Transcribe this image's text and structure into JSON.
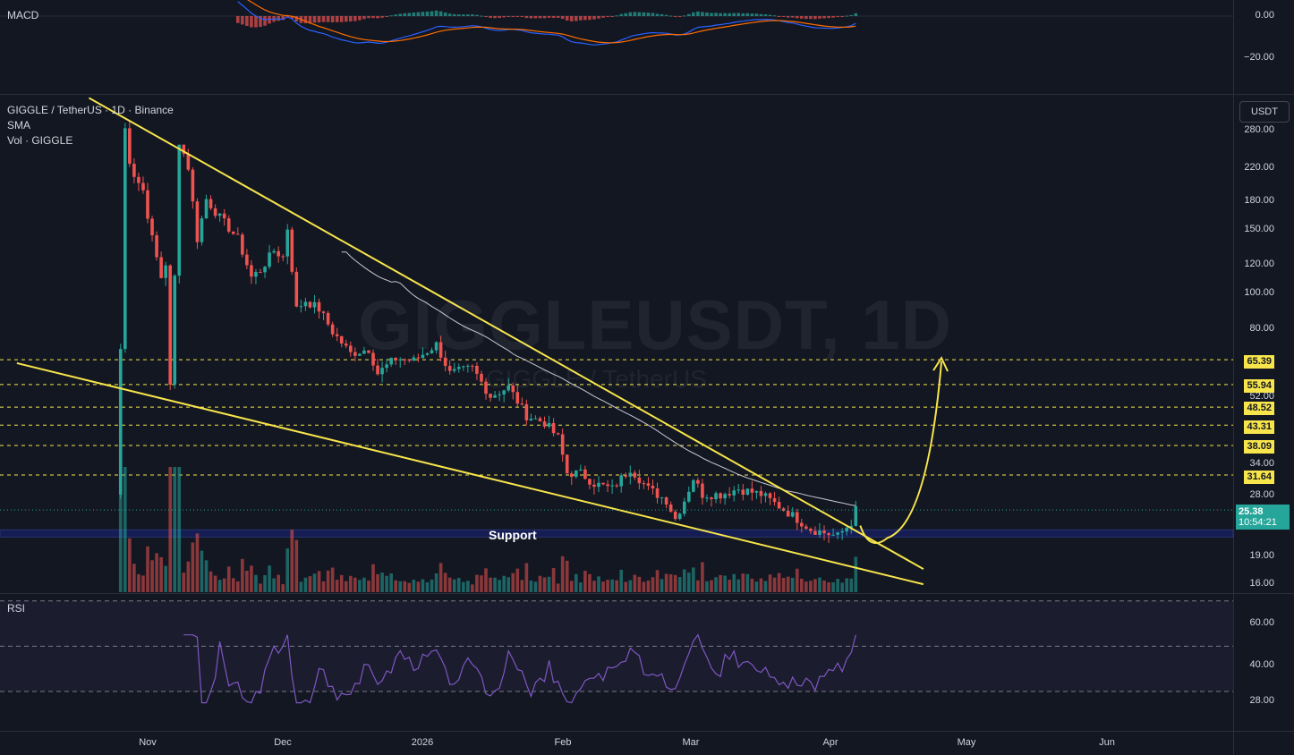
{
  "header": {
    "symbol_line": "GIGGLE / TetherUS · 1D · Binance",
    "sma_label": "SMA",
    "vol_label": "Vol · GIGGLE",
    "macd_label": "MACD",
    "rsi_label": "RSI",
    "currency": "USDT"
  },
  "watermark": {
    "line1": "GIGGLEUSDT, 1D",
    "line2": "GIGGLE / TetherUS"
  },
  "annotation": {
    "support_label": "Support"
  },
  "colors": {
    "background": "#131722",
    "up": "#26a69a",
    "down": "#ef5350",
    "trendline": "#f7e54b",
    "level_tag": "#f7e54b",
    "support_zone": "#1a237e",
    "sma": "#c8c8d0",
    "rsi": "#7e57c2",
    "macd": "#2962ff",
    "signal": "#ff6d00"
  },
  "price_axis": {
    "labels": [
      "280.00",
      "220.00",
      "180.00",
      "150.00",
      "120.00",
      "100.00",
      "80.00",
      "52.00",
      "34.00",
      "28.00",
      "19.00",
      "16.00"
    ],
    "level_tags": [
      "65.39",
      "55.94",
      "48.52",
      "43.31",
      "38.09",
      "31.64"
    ],
    "current_price": "25.38",
    "countdown": "10:54:21"
  },
  "macd_axis": {
    "labels": [
      "0.00",
      "−20.00"
    ]
  },
  "rsi_axis": {
    "labels": [
      "60.00",
      "40.00",
      "28.00"
    ]
  },
  "time_axis": {
    "labels": [
      "Nov",
      "Dec",
      "2026",
      "Feb",
      "Mar",
      "Apr",
      "May",
      "Jun"
    ]
  },
  "chart_data": {
    "type": "candlestick",
    "symbol": "GIGGLE / TetherUS",
    "interval": "1D",
    "exchange": "Binance",
    "scale": "log",
    "price_range": [
      15,
      300
    ],
    "anchors": [
      [
        "2025-10-26",
        70
      ],
      [
        "2025-10-27",
        280
      ],
      [
        "2025-10-28",
        230
      ],
      [
        "2025-10-29",
        210
      ],
      [
        "2025-10-31",
        190
      ],
      [
        "2025-11-02",
        140
      ],
      [
        "2025-11-04",
        110
      ],
      [
        "2025-11-05",
        120
      ],
      [
        "2025-11-06",
        55
      ],
      [
        "2025-11-07",
        110
      ],
      [
        "2025-11-08",
        260
      ],
      [
        "2025-11-10",
        220
      ],
      [
        "2025-11-12",
        140
      ],
      [
        "2025-11-14",
        180
      ],
      [
        "2025-11-17",
        160
      ],
      [
        "2025-11-19",
        150
      ],
      [
        "2025-11-21",
        140
      ],
      [
        "2025-11-24",
        110
      ],
      [
        "2025-11-26",
        115
      ],
      [
        "2025-11-29",
        130
      ],
      [
        "2025-12-01",
        125
      ],
      [
        "2025-12-02",
        150
      ],
      [
        "2025-12-04",
        90
      ],
      [
        "2025-12-06",
        95
      ],
      [
        "2025-12-09",
        90
      ],
      [
        "2025-12-12",
        78
      ],
      [
        "2025-12-16",
        68
      ],
      [
        "2025-12-20",
        70
      ],
      [
        "2025-12-22",
        60
      ],
      [
        "2025-12-26",
        66
      ],
      [
        "2025-12-30",
        65
      ],
      [
        "2026-01-04",
        72
      ],
      [
        "2026-01-07",
        60
      ],
      [
        "2026-01-12",
        62
      ],
      [
        "2026-01-16",
        52
      ],
      [
        "2026-01-20",
        55
      ],
      [
        "2026-01-24",
        46
      ],
      [
        "2026-01-28",
        44
      ],
      [
        "2026-01-31",
        40
      ],
      [
        "2026-02-02",
        32
      ],
      [
        "2026-02-05",
        32
      ],
      [
        "2026-02-08",
        30
      ],
      [
        "2026-02-12",
        29
      ],
      [
        "2026-02-16",
        33
      ],
      [
        "2026-02-20",
        29
      ],
      [
        "2026-02-24",
        27
      ],
      [
        "2026-02-26",
        24
      ],
      [
        "2026-02-28",
        27
      ],
      [
        "2026-03-02",
        31
      ],
      [
        "2026-03-04",
        28
      ],
      [
        "2026-03-08",
        28
      ],
      [
        "2026-03-12",
        29
      ],
      [
        "2026-03-17",
        28
      ],
      [
        "2026-03-21",
        26
      ],
      [
        "2026-03-25",
        24
      ],
      [
        "2026-03-28",
        22.5
      ],
      [
        "2026-03-31",
        22
      ],
      [
        "2026-04-03",
        21.5
      ],
      [
        "2026-04-06",
        23.5
      ],
      [
        "2026-04-07",
        25.38
      ]
    ],
    "levels": [
      65.39,
      55.94,
      48.52,
      43.31,
      38.09,
      31.64
    ],
    "support_zone": [
      21.4,
      22.4
    ],
    "trendlines": [
      {
        "name": "upper",
        "from": [
          "2025-10-19",
          340
        ],
        "to": [
          "2026-04-22",
          17.5
        ]
      },
      {
        "name": "lower",
        "from": [
          "2025-10-03",
          64
        ],
        "to": [
          "2026-04-22",
          15.9
        ]
      }
    ],
    "projection": {
      "from": [
        "2026-04-08",
        23
      ],
      "low": [
        "2026-04-12",
        22
      ],
      "to": [
        "2026-04-26",
        65.39
      ]
    },
    "rsi_levels": [
      70,
      50,
      30
    ]
  }
}
